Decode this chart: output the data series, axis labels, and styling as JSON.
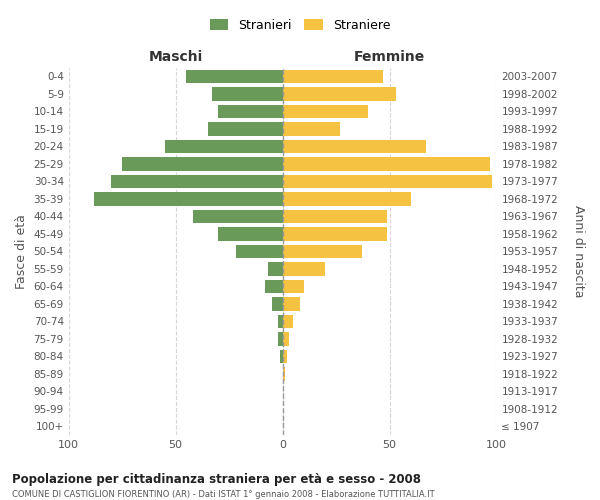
{
  "age_groups": [
    "100+",
    "95-99",
    "90-94",
    "85-89",
    "80-84",
    "75-79",
    "70-74",
    "65-69",
    "60-64",
    "55-59",
    "50-54",
    "45-49",
    "40-44",
    "35-39",
    "30-34",
    "25-29",
    "20-24",
    "15-19",
    "10-14",
    "5-9",
    "0-4"
  ],
  "birth_years": [
    "≤ 1907",
    "1908-1912",
    "1913-1917",
    "1918-1922",
    "1923-1927",
    "1928-1932",
    "1933-1937",
    "1938-1942",
    "1943-1947",
    "1948-1952",
    "1953-1957",
    "1958-1962",
    "1963-1967",
    "1968-1972",
    "1973-1977",
    "1978-1982",
    "1983-1987",
    "1988-1992",
    "1993-1997",
    "1998-2002",
    "2003-2007"
  ],
  "maschi": [
    0,
    0,
    0,
    0,
    1,
    2,
    2,
    5,
    8,
    7,
    22,
    30,
    42,
    88,
    80,
    75,
    55,
    35,
    30,
    33,
    45
  ],
  "femmine": [
    0,
    0,
    0,
    1,
    2,
    3,
    5,
    8,
    10,
    20,
    37,
    49,
    49,
    60,
    98,
    97,
    67,
    27,
    40,
    53,
    47
  ],
  "maschi_color": "#6a9a5a",
  "femmine_color": "#f5c242",
  "title_main": "Popolazione per cittadinanza straniera per età e sesso - 2008",
  "title_sub": "COMUNE DI CASTIGLION FIORENTINO (AR) - Dati ISTAT 1° gennaio 2008 - Elaborazione TUTTITALIA.IT",
  "legend_maschi": "Stranieri",
  "legend_femmine": "Straniere",
  "label_maschi": "Maschi",
  "label_femmine": "Femmine",
  "ylabel_left": "Fasce di età",
  "ylabel_right": "Anni di nascita",
  "xlim": 100,
  "bg_color": "#ffffff",
  "grid_color": "#cccccc",
  "text_color": "#555555",
  "title_color": "#222222"
}
